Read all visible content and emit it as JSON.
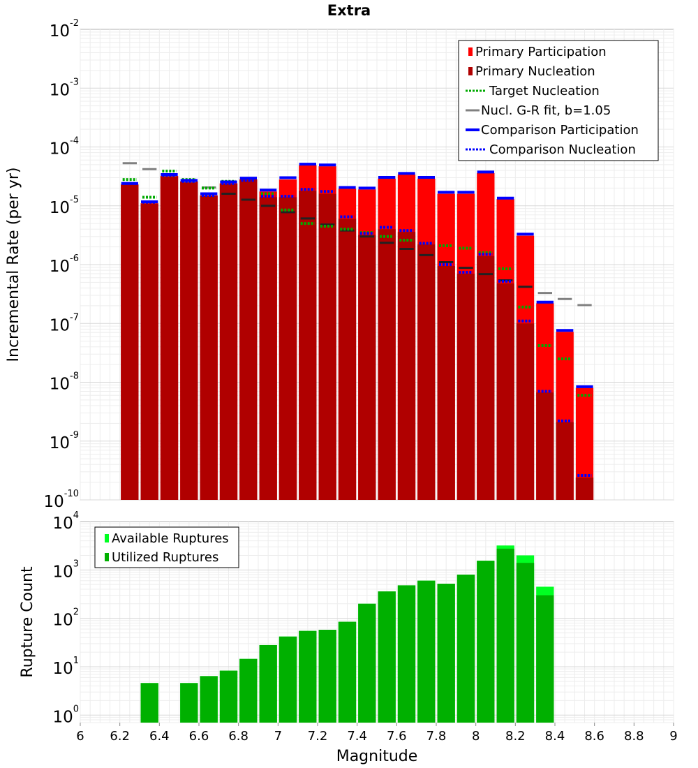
{
  "chart_data": [
    {
      "type": "bar",
      "title": "Extra",
      "xlabel": "Magnitude",
      "ylabel": "Incremental Rate (per yr)",
      "x_scale": "linear",
      "y_scale": "log",
      "xlim": [
        6,
        9
      ],
      "ylim": [
        1e-10,
        0.01
      ],
      "bin_width": 0.1,
      "grid": true,
      "legend_position": "top-right",
      "x_ticks": [
        "6",
        "6.2",
        "6.4",
        "6.6",
        "6.8",
        "7",
        "7.2",
        "7.4",
        "7.6",
        "7.8",
        "8",
        "8.2",
        "8.4",
        "8.6",
        "8.8",
        "9"
      ],
      "y_tick_base": "10",
      "y_tick_exponents": [
        "-2",
        "-3",
        "-4",
        "-5",
        "-6",
        "-7",
        "-8",
        "-9",
        "-10"
      ],
      "x": [
        6.25,
        6.35,
        6.45,
        6.55,
        6.65,
        6.75,
        6.85,
        6.95,
        7.05,
        7.15,
        7.25,
        7.35,
        7.45,
        7.55,
        7.65,
        7.75,
        7.85,
        7.95,
        8.05,
        8.15,
        8.25,
        8.35,
        8.45,
        8.55
      ],
      "series": [
        {
          "name": "Primary Participation",
          "color": "#ff0000",
          "values": [
            2.3e-05,
            1.1e-05,
            3.2e-05,
            2.6e-05,
            1.5e-05,
            2.4e-05,
            2.8e-05,
            1.75e-05,
            2.8e-05,
            4.9e-05,
            4.7e-05,
            1.95e-05,
            1.9e-05,
            2.9e-05,
            3.4e-05,
            2.9e-05,
            1.6e-05,
            1.6e-05,
            3.6e-05,
            1.3e-05,
            3.1e-06,
            2.2e-07,
            7.2e-08,
            8e-09
          ]
        },
        {
          "name": "Primary Nucleation",
          "color": "#b00000",
          "values": [
            2.3e-05,
            1.1e-05,
            3.2e-05,
            2.6e-05,
            1.5e-05,
            2.4e-05,
            2.8e-05,
            1.4e-05,
            1.4e-05,
            1.8e-05,
            1.6e-05,
            6e-06,
            3.2e-06,
            4e-06,
            3.6e-06,
            2.2e-06,
            9.5e-07,
            7e-07,
            1.4e-06,
            4.8e-07,
            1e-07,
            6.7e-09,
            2.1e-09,
            2.4e-10
          ]
        },
        {
          "name": "Target Nucleation",
          "color": "#00aa00",
          "style": "dotted",
          "values": [
            2.8e-05,
            1.4e-05,
            3.9e-05,
            2.8e-05,
            2e-05,
            2.6e-05,
            2.9e-05,
            1.6e-05,
            8.5e-06,
            5e-06,
            4.5e-06,
            4e-06,
            3.5e-06,
            3e-06,
            2.6e-06,
            2.3e-06,
            2.1e-06,
            1.9e-06,
            1.6e-06,
            8.5e-07,
            1.9e-07,
            4.2e-08,
            2.5e-08,
            6e-09
          ]
        },
        {
          "name": "Nucl. G-R fit, b=1.05",
          "color": "#808080",
          "dark_color": "#222222",
          "values": [
            5.3e-05,
            4.2e-05,
            3.3e-05,
            2.6e-05,
            2.05e-05,
            1.6e-05,
            1.27e-05,
            1e-05,
            7.8e-06,
            6.1e-06,
            4.8e-06,
            3.8e-06,
            3e-06,
            2.35e-06,
            1.85e-06,
            1.45e-06,
            1.1e-06,
            8.8e-07,
            6.9e-07,
            5.4e-07,
            4.2e-07,
            3.3e-07,
            2.6e-07,
            2.05e-07
          ]
        },
        {
          "name": "Comparison Participation",
          "color": "#0000ff",
          "values": [
            2.4e-05,
            1.17e-05,
            3.4e-05,
            2.7e-05,
            1.6e-05,
            2.55e-05,
            2.95e-05,
            1.85e-05,
            3e-05,
            5.1e-05,
            4.95e-05,
            2.05e-05,
            2e-05,
            3.05e-05,
            3.55e-05,
            3.05e-05,
            1.7e-05,
            1.7e-05,
            3.75e-05,
            1.35e-05,
            3.3e-06,
            2.3e-07,
            7.6e-08,
            8.4e-09
          ]
        },
        {
          "name": "Comparison Nucleation",
          "color": "#0000ff",
          "style": "dotted",
          "values": [
            2.4e-05,
            1.15e-05,
            3.3e-05,
            2.6e-05,
            1.5e-05,
            2.4e-05,
            2.7e-05,
            1.45e-05,
            1.45e-05,
            1.9e-05,
            1.75e-05,
            6.5e-06,
            3.4e-06,
            4.3e-06,
            3.8e-06,
            2.3e-06,
            1e-06,
            7.4e-07,
            1.5e-06,
            5.2e-07,
            1.1e-07,
            7e-09,
            2.2e-09,
            2.6e-10
          ]
        }
      ]
    },
    {
      "type": "bar",
      "xlabel": "Magnitude",
      "ylabel": "Rupture Count",
      "x_scale": "linear",
      "y_scale": "log",
      "xlim": [
        6,
        9
      ],
      "ylim": [
        0.7,
        10000.0
      ],
      "bin_width": 0.1,
      "grid": true,
      "legend_position": "top-left",
      "y_tick_base": "10",
      "y_tick_exponents": [
        "4",
        "3",
        "2",
        "1",
        "0"
      ],
      "x": [
        6.35,
        6.55,
        6.65,
        6.75,
        6.85,
        6.95,
        7.05,
        7.15,
        7.25,
        7.35,
        7.45,
        7.55,
        7.65,
        7.75,
        7.85,
        7.95,
        8.05,
        8.15,
        8.25,
        8.35
      ],
      "series": [
        {
          "name": "Available Ruptures",
          "color": "#00ff22",
          "values": [
            4.6,
            4.6,
            6.4,
            8.3,
            14.5,
            28,
            42,
            55,
            58,
            85,
            200,
            360,
            480,
            600,
            520,
            800,
            1550,
            3200,
            2000,
            450
          ]
        },
        {
          "name": "Utilized Ruptures",
          "color": "#00b000",
          "values": [
            4.6,
            4.6,
            6.4,
            8.3,
            14.5,
            28,
            42,
            55,
            58,
            85,
            200,
            360,
            480,
            600,
            520,
            800,
            1550,
            2750,
            1400,
            300
          ]
        }
      ]
    }
  ]
}
